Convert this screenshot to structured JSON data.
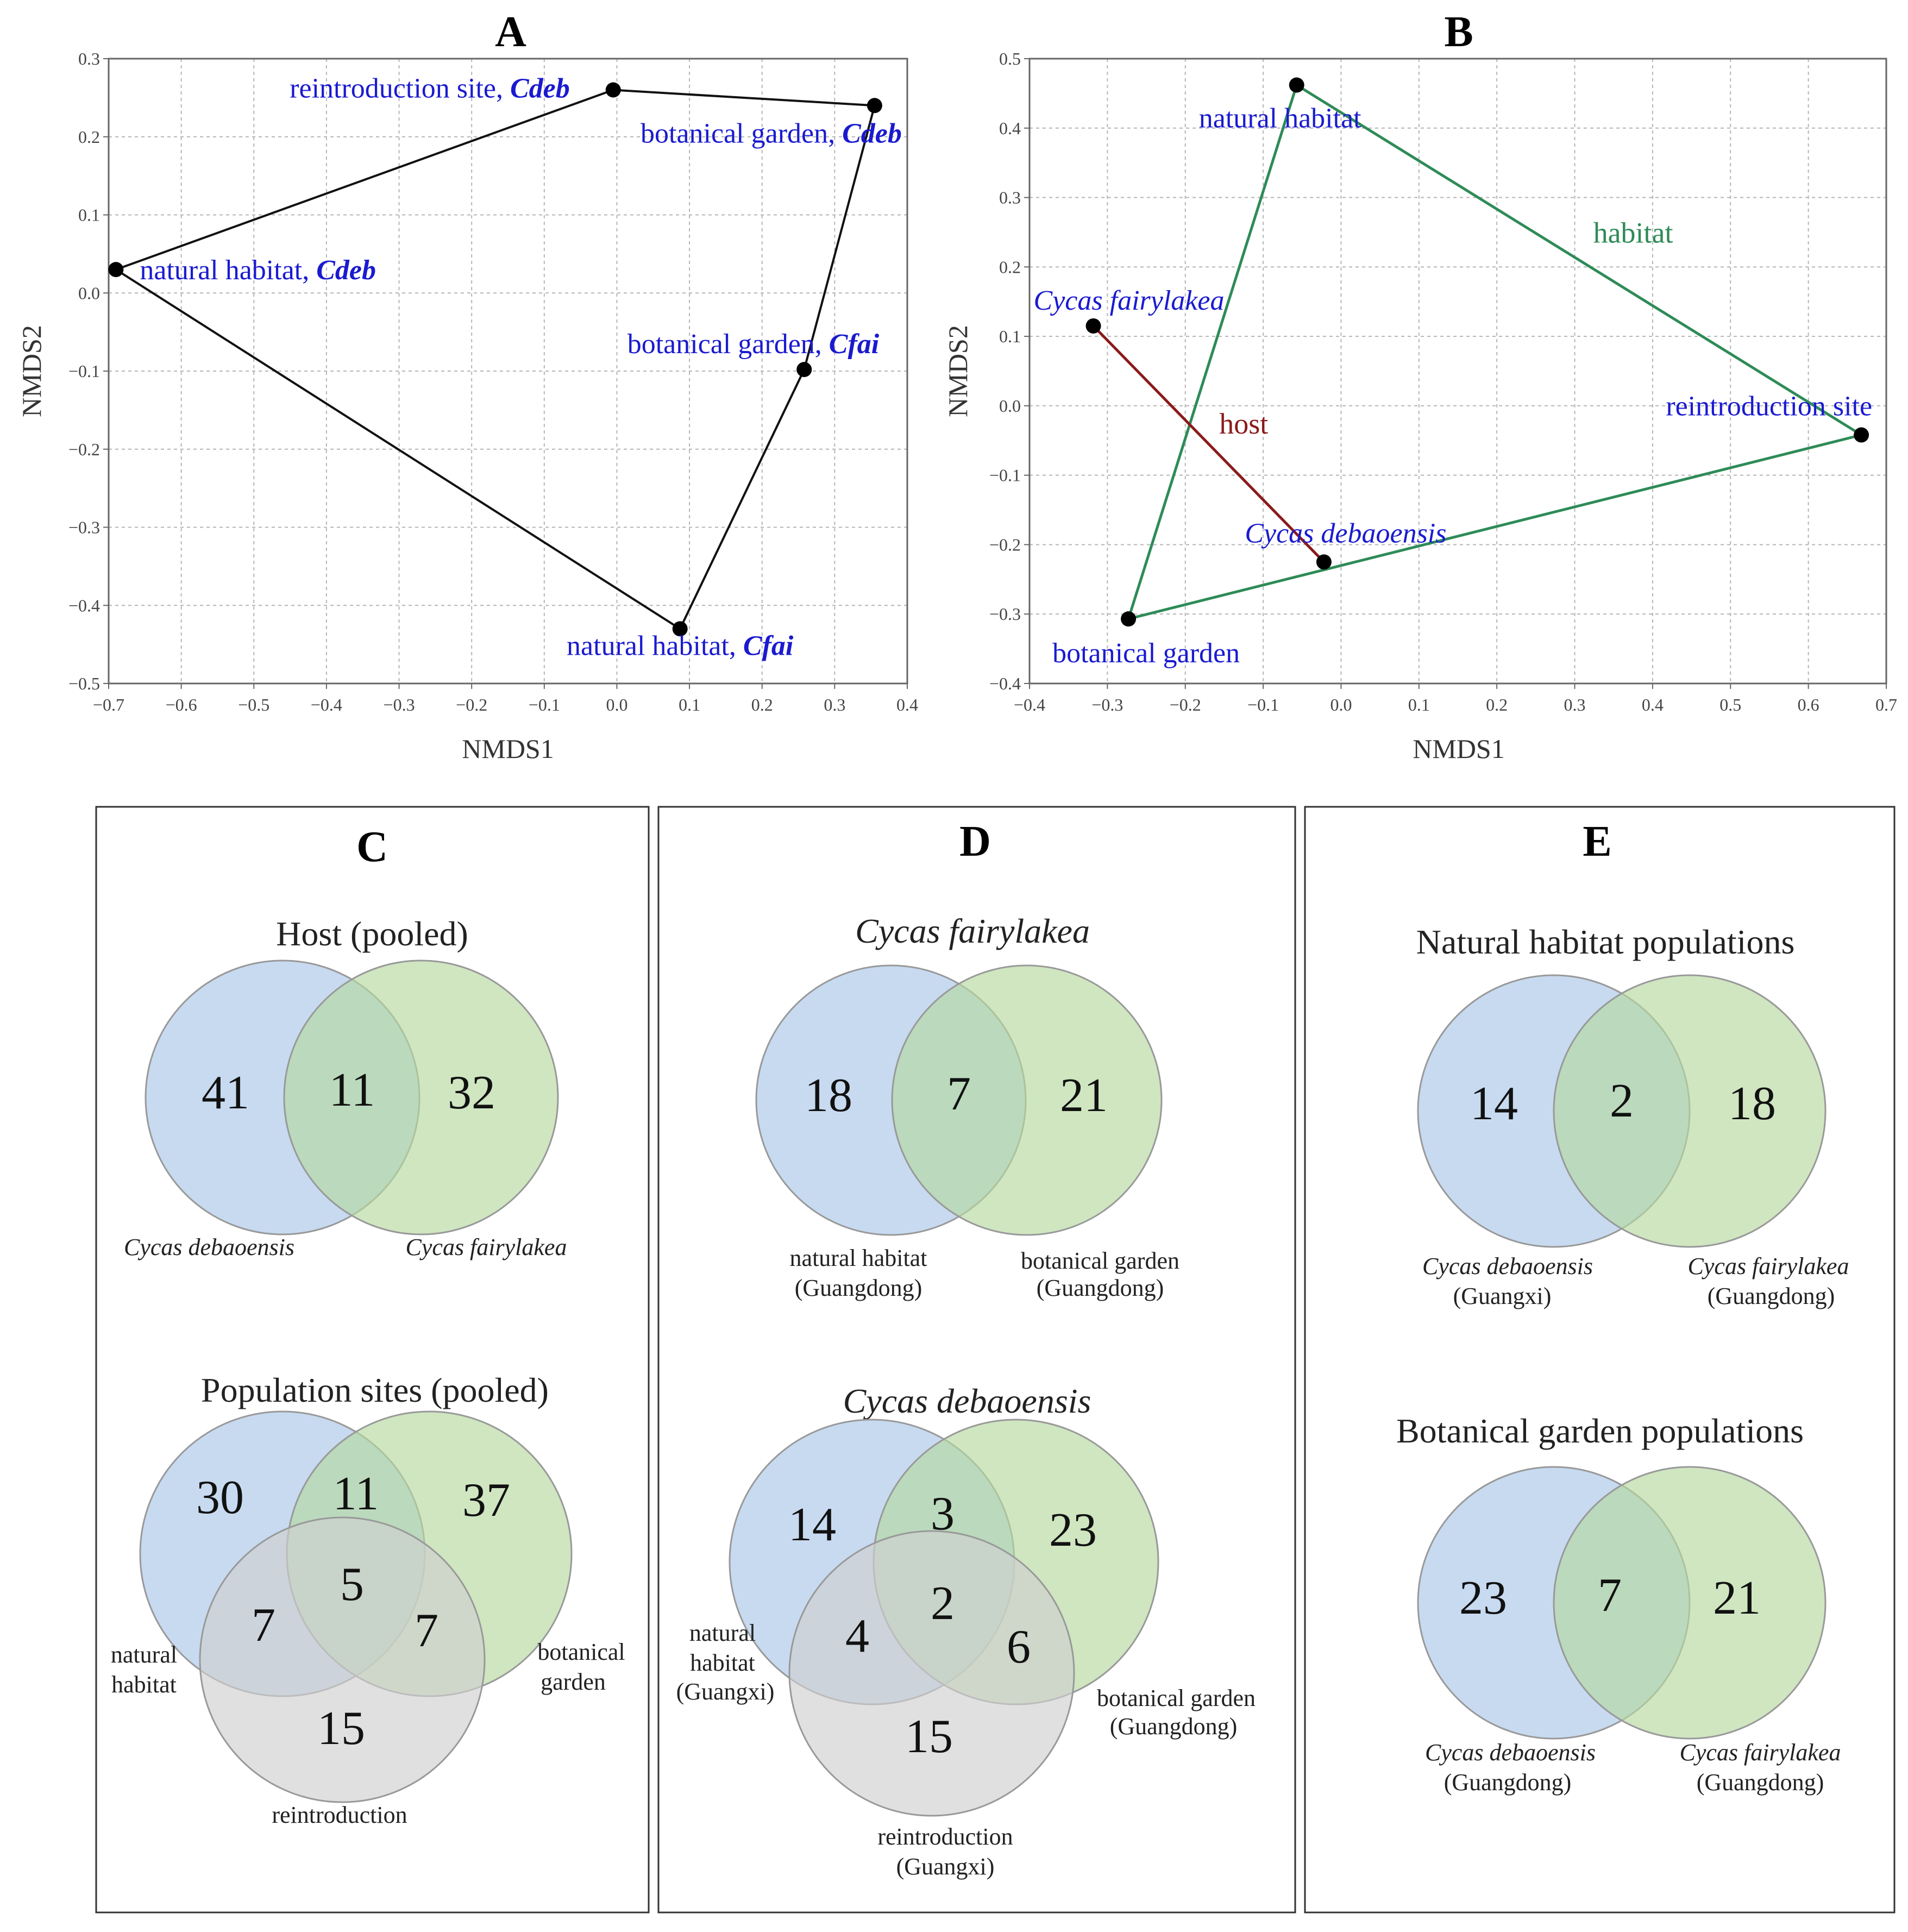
{
  "chart_data": [
    {
      "panel": "A",
      "type": "scatter",
      "xlabel": "NMDS1",
      "ylabel": "NMDS2",
      "xlim": [
        -0.7,
        0.4
      ],
      "ylim": [
        -0.5,
        0.3
      ],
      "xticks": [
        -0.7,
        -0.6,
        -0.5,
        -0.4,
        -0.3,
        -0.2,
        -0.1,
        0.0,
        0.1,
        0.2,
        0.3,
        0.4
      ],
      "yticks": [
        0.3,
        0.2,
        0.1,
        0.0,
        -0.1,
        -0.2,
        -0.3,
        -0.4,
        -0.5
      ],
      "tick_labels_x": [
        "−0.7",
        "−0.6",
        "−0.5",
        "−0.4",
        "−0.3",
        "−0.2",
        "−0.1",
        "0.0",
        "0.1",
        "0.2",
        "0.3",
        "0.4"
      ],
      "tick_labels_y": [
        "0.3",
        "0.2",
        "0.1",
        "0.0",
        "−0.1",
        "−0.2",
        "−0.3",
        "−0.4",
        "−0.5"
      ],
      "hull_color": "#111111",
      "points": [
        {
          "id": "reintro",
          "x": -0.005,
          "y": 0.26,
          "label": "reintroduction site, ",
          "species": "Cdeb",
          "anchor": "end",
          "dx": -80,
          "dy": 14
        },
        {
          "id": "bg_cdeb",
          "x": 0.355,
          "y": 0.24,
          "label": "botanical garden, ",
          "species": "Cdeb",
          "anchor": "end",
          "dx": 50,
          "dy": 68
        },
        {
          "id": "nh_cdeb",
          "x": -0.69,
          "y": 0.03,
          "label": "natural habitat, ",
          "species": "Cdeb",
          "anchor": "start",
          "dx": 44,
          "dy": 18
        },
        {
          "id": "bg_cfai",
          "x": 0.258,
          "y": -0.098,
          "label": "botanical garden, ",
          "species": "Cfai",
          "anchor": "end",
          "dx": 138,
          "dy": -30
        },
        {
          "id": "nh_cfai",
          "x": 0.087,
          "y": -0.43,
          "label": "natural habitat, ",
          "species": "Cfai",
          "anchor": "middle",
          "dx": 0,
          "dy": 48
        }
      ],
      "hull": [
        "nh_cdeb",
        "reintro",
        "bg_cdeb",
        "bg_cfai",
        "nh_cfai"
      ]
    },
    {
      "panel": "B",
      "type": "scatter",
      "xlabel": "NMDS1",
      "ylabel": "NMDS2",
      "xlim": [
        -0.4,
        0.7
      ],
      "ylim": [
        -0.4,
        0.5
      ],
      "xticks": [
        -0.4,
        -0.3,
        -0.2,
        -0.1,
        0.0,
        0.1,
        0.2,
        0.3,
        0.4,
        0.5,
        0.6,
        0.7
      ],
      "yticks": [
        0.5,
        0.4,
        0.3,
        0.2,
        0.1,
        0.0,
        -0.1,
        -0.2,
        -0.3,
        -0.4
      ],
      "tick_labels_x": [
        "−0.4",
        "−0.3",
        "−0.2",
        "−0.1",
        "0.0",
        "0.1",
        "0.2",
        "0.3",
        "0.4",
        "0.5",
        "0.6",
        "0.7"
      ],
      "tick_labels_y": [
        "0.5",
        "0.4",
        "0.3",
        "0.2",
        "0.1",
        "0.0",
        "−0.1",
        "−0.2",
        "−0.3",
        "−0.4"
      ],
      "points": [
        {
          "id": "nh",
          "x": -0.057,
          "y": 0.462,
          "label": "natural habitat",
          "italic": false,
          "anchor": "start",
          "dx": -180,
          "dy": 78
        },
        {
          "id": "cfai",
          "x": -0.318,
          "y": 0.115,
          "label": "Cycas fairylakea",
          "italic": true,
          "anchor": "start",
          "dx": -110,
          "dy": -30
        },
        {
          "id": "reintro",
          "x": 0.668,
          "y": -0.042,
          "label": "reintroduction site",
          "italic": false,
          "anchor": "end",
          "dx": 20,
          "dy": -36
        },
        {
          "id": "cdeb",
          "x": -0.022,
          "y": -0.225,
          "label": "Cycas debaoensis",
          "italic": true,
          "anchor": "middle",
          "dx": 40,
          "dy": -36
        },
        {
          "id": "bg",
          "x": -0.273,
          "y": -0.307,
          "label": "botanical garden",
          "italic": false,
          "anchor": "start",
          "dx": -140,
          "dy": 80
        }
      ],
      "habitat_triangle": [
        "nh",
        "reintro",
        "bg"
      ],
      "host_line": [
        "cfai",
        "cdeb"
      ],
      "habitat_color": "#2e8b57",
      "host_color": "#8b1a1a",
      "annotations": [
        {
          "text": "habitat",
          "x": 0.375,
          "y": 0.235,
          "color": "#2e8b57"
        },
        {
          "text": "host",
          "x": -0.125,
          "y": -0.04,
          "color": "#8b1a1a"
        }
      ]
    }
  ],
  "panels": {
    "A": {
      "letter": "A"
    },
    "B": {
      "letter": "B"
    },
    "C": {
      "letter": "C",
      "venn1": {
        "title": "Host (pooled)",
        "left": "41",
        "mid": "11",
        "right": "32",
        "label_left": "Cycas debaoensis",
        "label_right": "Cycas fairylakea"
      },
      "venn2": {
        "title": "Population sites (pooled)",
        "a": "30",
        "ab": "11",
        "b": "37",
        "abc": "5",
        "ac": "7",
        "bc": "7",
        "c": "15",
        "label_a1": "natural",
        "label_a2": "habitat",
        "label_b1": "botanical",
        "label_b2": "garden",
        "label_c": "reintroduction"
      }
    },
    "D": {
      "letter": "D",
      "venn1": {
        "title": "Cycas fairylakea",
        "left": "18",
        "mid": "7",
        "right": "21",
        "label_left1": "natural habitat",
        "label_left2": "(Guangdong)",
        "label_right1": "botanical garden",
        "label_right2": "(Guangdong)"
      },
      "venn2": {
        "title": "Cycas debaoensis",
        "a": "14",
        "ab": "3",
        "b": "23",
        "abc": "2",
        "ac": "4",
        "bc": "6",
        "c": "15",
        "label_a1": "natural",
        "label_a2": "habitat",
        "label_a3": "(Guangxi)",
        "label_b1": "botanical garden",
        "label_b2": "(Guangdong)",
        "label_c1": "reintroduction",
        "label_c2": "(Guangxi)"
      }
    },
    "E": {
      "letter": "E",
      "venn1": {
        "title": "Natural habitat populations",
        "left": "14",
        "mid": "2",
        "right": "18",
        "label_left1": "Cycas  debaoensis",
        "label_left2": "(Guangxi)",
        "label_right1": "Cycas  fairylakea",
        "label_right2": "(Guangdong)"
      },
      "venn2": {
        "title": "Botanical garden populations",
        "left": "23",
        "mid": "7",
        "right": "21",
        "label_left1": "Cycas  debaoensis",
        "label_left2": "(Guangdong)",
        "label_right1": "Cycas  fairylakea",
        "label_right2": "(Guangdong)"
      }
    }
  },
  "colors": {
    "blue_circle": "#a9c6e8",
    "green_circle": "#b5d9a0",
    "gray_circle": "#cfcfcf",
    "point": "#000000",
    "label_blue": "#1a1ad0"
  }
}
